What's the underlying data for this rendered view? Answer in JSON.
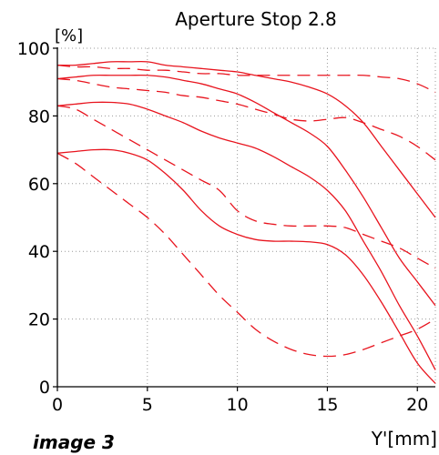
{
  "chart_data": {
    "type": "line",
    "title": "Aperture Stop 2.8",
    "ylabel": "[%]",
    "xlabel": "Y'[mm]",
    "xlim": [
      0,
      21
    ],
    "ylim": [
      0,
      100
    ],
    "x_ticks": [
      0,
      5,
      10,
      15,
      20
    ],
    "y_ticks": [
      0,
      20,
      40,
      60,
      80,
      100
    ],
    "x_tick_labels": [
      "0",
      "5",
      "10",
      "15",
      "20"
    ],
    "y_tick_labels": [
      "0",
      "20",
      "40",
      "60",
      "80",
      "100"
    ],
    "grid": true,
    "line_color": "#e8141e",
    "series": [
      {
        "style": "solid",
        "x": [
          0,
          1,
          2,
          3,
          4,
          5,
          6,
          7,
          8,
          9,
          10,
          11,
          12,
          13,
          14,
          15,
          16,
          17,
          18,
          19,
          20,
          21
        ],
        "y": [
          95,
          95,
          95.5,
          96,
          96,
          96,
          95,
          94.5,
          94,
          93.5,
          93,
          92,
          91,
          90,
          88.5,
          86.5,
          83,
          78,
          71,
          64,
          57,
          50
        ]
      },
      {
        "style": "solid",
        "x": [
          0,
          1,
          2,
          3,
          4,
          5,
          6,
          7,
          8,
          9,
          10,
          11,
          12,
          13,
          14,
          15,
          16,
          17,
          18,
          19,
          20,
          21
        ],
        "y": [
          91,
          91.5,
          92,
          92,
          92,
          92,
          91.5,
          90.5,
          89.5,
          88,
          86.5,
          84,
          81,
          78,
          75,
          71,
          64,
          56,
          47,
          38,
          31,
          24
        ]
      },
      {
        "style": "solid",
        "x": [
          0,
          1,
          2,
          3,
          4,
          5,
          6,
          7,
          8,
          9,
          10,
          11,
          12,
          13,
          14,
          15,
          16,
          17,
          18,
          19,
          20,
          21
        ],
        "y": [
          83,
          83.5,
          84,
          84,
          83.5,
          82,
          80,
          78,
          75.5,
          73.5,
          72,
          70.5,
          68,
          65,
          62,
          58,
          52,
          43,
          34,
          24,
          15,
          5
        ]
      },
      {
        "style": "solid",
        "x": [
          0,
          1,
          2,
          3,
          4,
          5,
          6,
          7,
          8,
          9,
          10,
          11,
          12,
          13,
          14,
          15,
          16,
          17,
          18,
          19,
          20,
          21
        ],
        "y": [
          69,
          69.5,
          70,
          70,
          69,
          67,
          63,
          58,
          52,
          47.5,
          45,
          43.5,
          43,
          43,
          42.8,
          42,
          39,
          33,
          25,
          16,
          7,
          1
        ]
      },
      {
        "style": "dashed",
        "x": [
          0,
          1,
          2,
          3,
          4,
          5,
          6,
          7,
          8,
          9,
          10,
          11,
          12,
          13,
          14,
          15,
          16,
          17,
          18,
          19,
          20,
          21
        ],
        "y": [
          95,
          94.5,
          94.5,
          94,
          94,
          93.5,
          93.5,
          93,
          92.5,
          92.5,
          92,
          92,
          92,
          92,
          92,
          92,
          92,
          92,
          91.5,
          91,
          89.5,
          87
        ]
      },
      {
        "style": "dashed",
        "x": [
          0,
          1,
          2,
          3,
          4,
          5,
          6,
          7,
          8,
          9,
          10,
          11,
          12,
          13,
          14,
          15,
          16,
          17,
          18,
          19,
          20,
          21
        ],
        "y": [
          91,
          90.5,
          89.5,
          88.5,
          88,
          87.5,
          87,
          86,
          85.5,
          84.5,
          83.5,
          82,
          80.5,
          79,
          78.5,
          79,
          79.5,
          78,
          76,
          74,
          71,
          67
        ]
      },
      {
        "style": "dashed",
        "x": [
          0,
          1,
          2,
          3,
          4,
          5,
          6,
          7,
          8,
          9,
          10,
          11,
          12,
          13,
          14,
          15,
          16,
          17,
          18,
          19,
          20,
          21
        ],
        "y": [
          83,
          82,
          79,
          76,
          73,
          70,
          67,
          64,
          61,
          58,
          52,
          49,
          48,
          47.5,
          47.5,
          47.5,
          47,
          45,
          43,
          41,
          38,
          35
        ]
      },
      {
        "style": "dashed",
        "x": [
          0,
          1,
          2,
          3,
          4,
          5,
          6,
          7,
          8,
          9,
          10,
          11,
          12,
          13,
          14,
          15,
          16,
          17,
          18,
          19,
          20,
          21
        ],
        "y": [
          69,
          66,
          62,
          58,
          54,
          50,
          45,
          39,
          33,
          27,
          22,
          17,
          13.5,
          11,
          9.5,
          9,
          9.5,
          11,
          13,
          15,
          17,
          20
        ]
      }
    ]
  },
  "caption": "image 3"
}
